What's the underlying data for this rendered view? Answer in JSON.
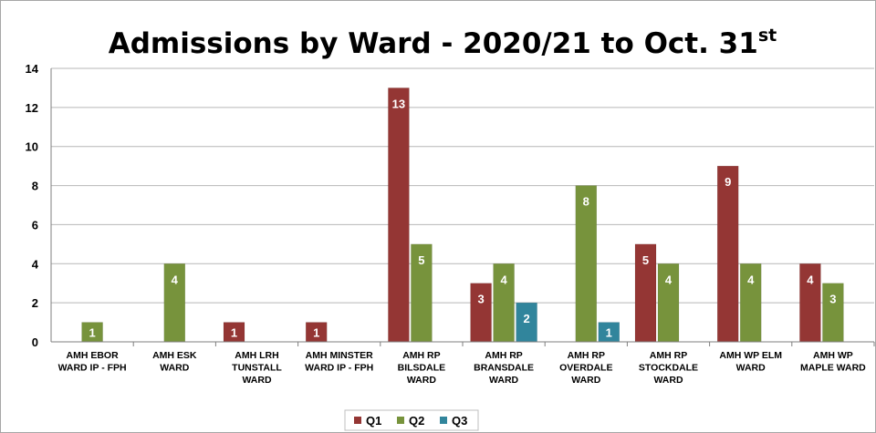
{
  "chart_data": {
    "type": "bar",
    "title": "Admissions by Ward - 2020/21 to Oct. 31",
    "title_superscript": "st",
    "categories": [
      [
        "AMH EBOR",
        "WARD IP - FPH"
      ],
      [
        "AMH ESK",
        "WARD"
      ],
      [
        "AMH LRH",
        "TUNSTALL",
        "WARD"
      ],
      [
        "AMH MINSTER",
        "WARD IP - FPH"
      ],
      [
        "AMH RP",
        "BILSDALE",
        "WARD"
      ],
      [
        "AMH RP",
        "BRANSDALE",
        "WARD"
      ],
      [
        "AMH RP",
        "OVERDALE",
        "WARD"
      ],
      [
        "AMH RP",
        "STOCKDALE",
        "WARD"
      ],
      [
        "AMH WP ELM",
        "WARD"
      ],
      [
        "AMH WP",
        "MAPLE WARD"
      ]
    ],
    "series": [
      {
        "name": "Q1",
        "color": "#943634",
        "values": [
          null,
          null,
          1,
          1,
          13,
          3,
          null,
          5,
          9,
          4
        ]
      },
      {
        "name": "Q2",
        "color": "#77933c",
        "values": [
          1,
          4,
          null,
          null,
          5,
          4,
          8,
          4,
          4,
          3
        ]
      },
      {
        "name": "Q3",
        "color": "#31859c",
        "values": [
          null,
          null,
          null,
          null,
          null,
          2,
          1,
          null,
          null,
          null
        ]
      }
    ],
    "ylim": [
      0,
      14
    ],
    "yticks": [
      0,
      2,
      4,
      6,
      8,
      10,
      12,
      14
    ],
    "grid": true,
    "legend": "bottom"
  }
}
